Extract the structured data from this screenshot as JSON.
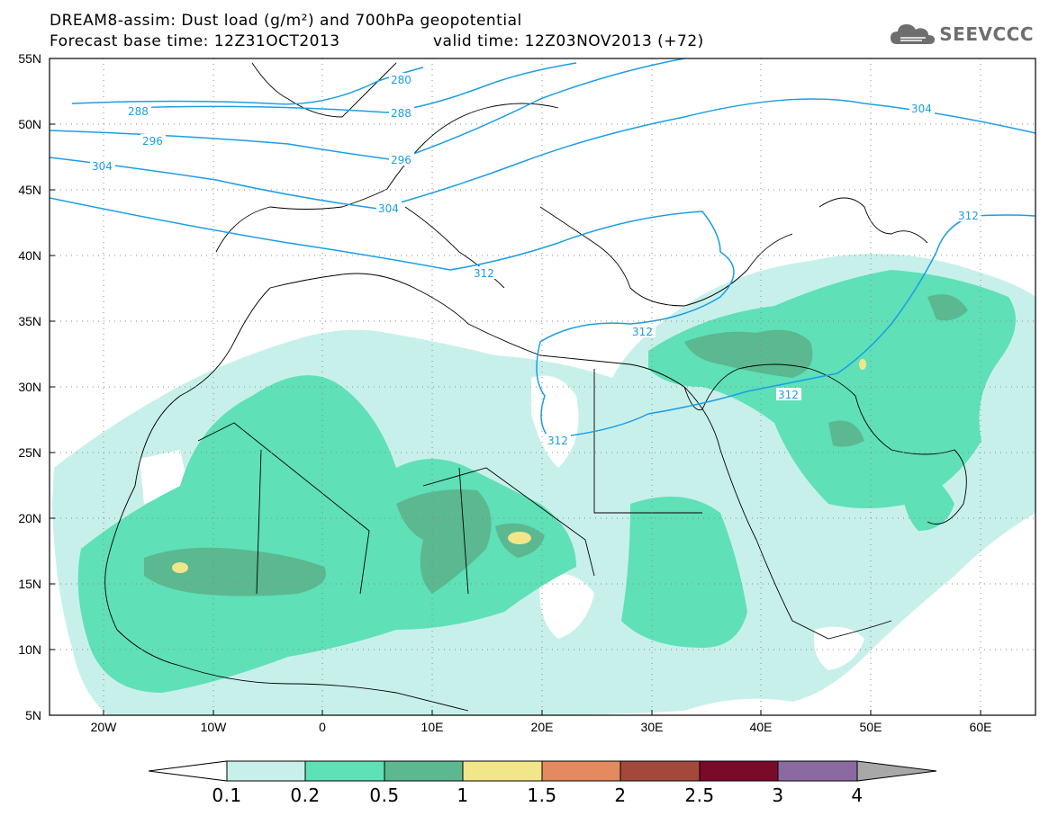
{
  "header": {
    "title_line1": "DREAM8-assim: Dust load (g/m²) and 700hPa geopotential",
    "base_time": "Forecast base time: 12Z31OCT2013",
    "valid_time": "valid time: 12Z03NOV2013 (+72)"
  },
  "logo": {
    "name": "SEEVCCC",
    "icon": "cloud-logo-icon"
  },
  "map": {
    "lat_labels": [
      "55N",
      "50N",
      "45N",
      "40N",
      "35N",
      "30N",
      "25N",
      "20N",
      "15N",
      "10N",
      "5N"
    ],
    "lon_labels": [
      "20W",
      "10W",
      "0",
      "10E",
      "20E",
      "30E",
      "40E",
      "50E",
      "60E"
    ],
    "contour_labels": [
      "280",
      "288",
      "288",
      "296",
      "296",
      "304",
      "304",
      "304",
      "312",
      "312",
      "312",
      "312",
      "312"
    ],
    "colors": {
      "dust_0_1": "#c8f0ea",
      "dust_0_2": "#5fe0b7",
      "dust_0_5": "#5bb890",
      "dust_1": "#f2e68a",
      "contour": "#1a9ee6",
      "coast": "#000000"
    }
  },
  "colorbar": {
    "labels": [
      "0.1",
      "0.2",
      "0.5",
      "1",
      "1.5",
      "2",
      "2.5",
      "3",
      "4"
    ],
    "colors": [
      "#c8f0ea",
      "#5fe0b7",
      "#5bb890",
      "#f2e68a",
      "#e48a5f",
      "#a5483c",
      "#7a0a2a",
      "#8a6aa0"
    ],
    "under_color": "#ffffff",
    "over_color": "#a8a8a8"
  }
}
